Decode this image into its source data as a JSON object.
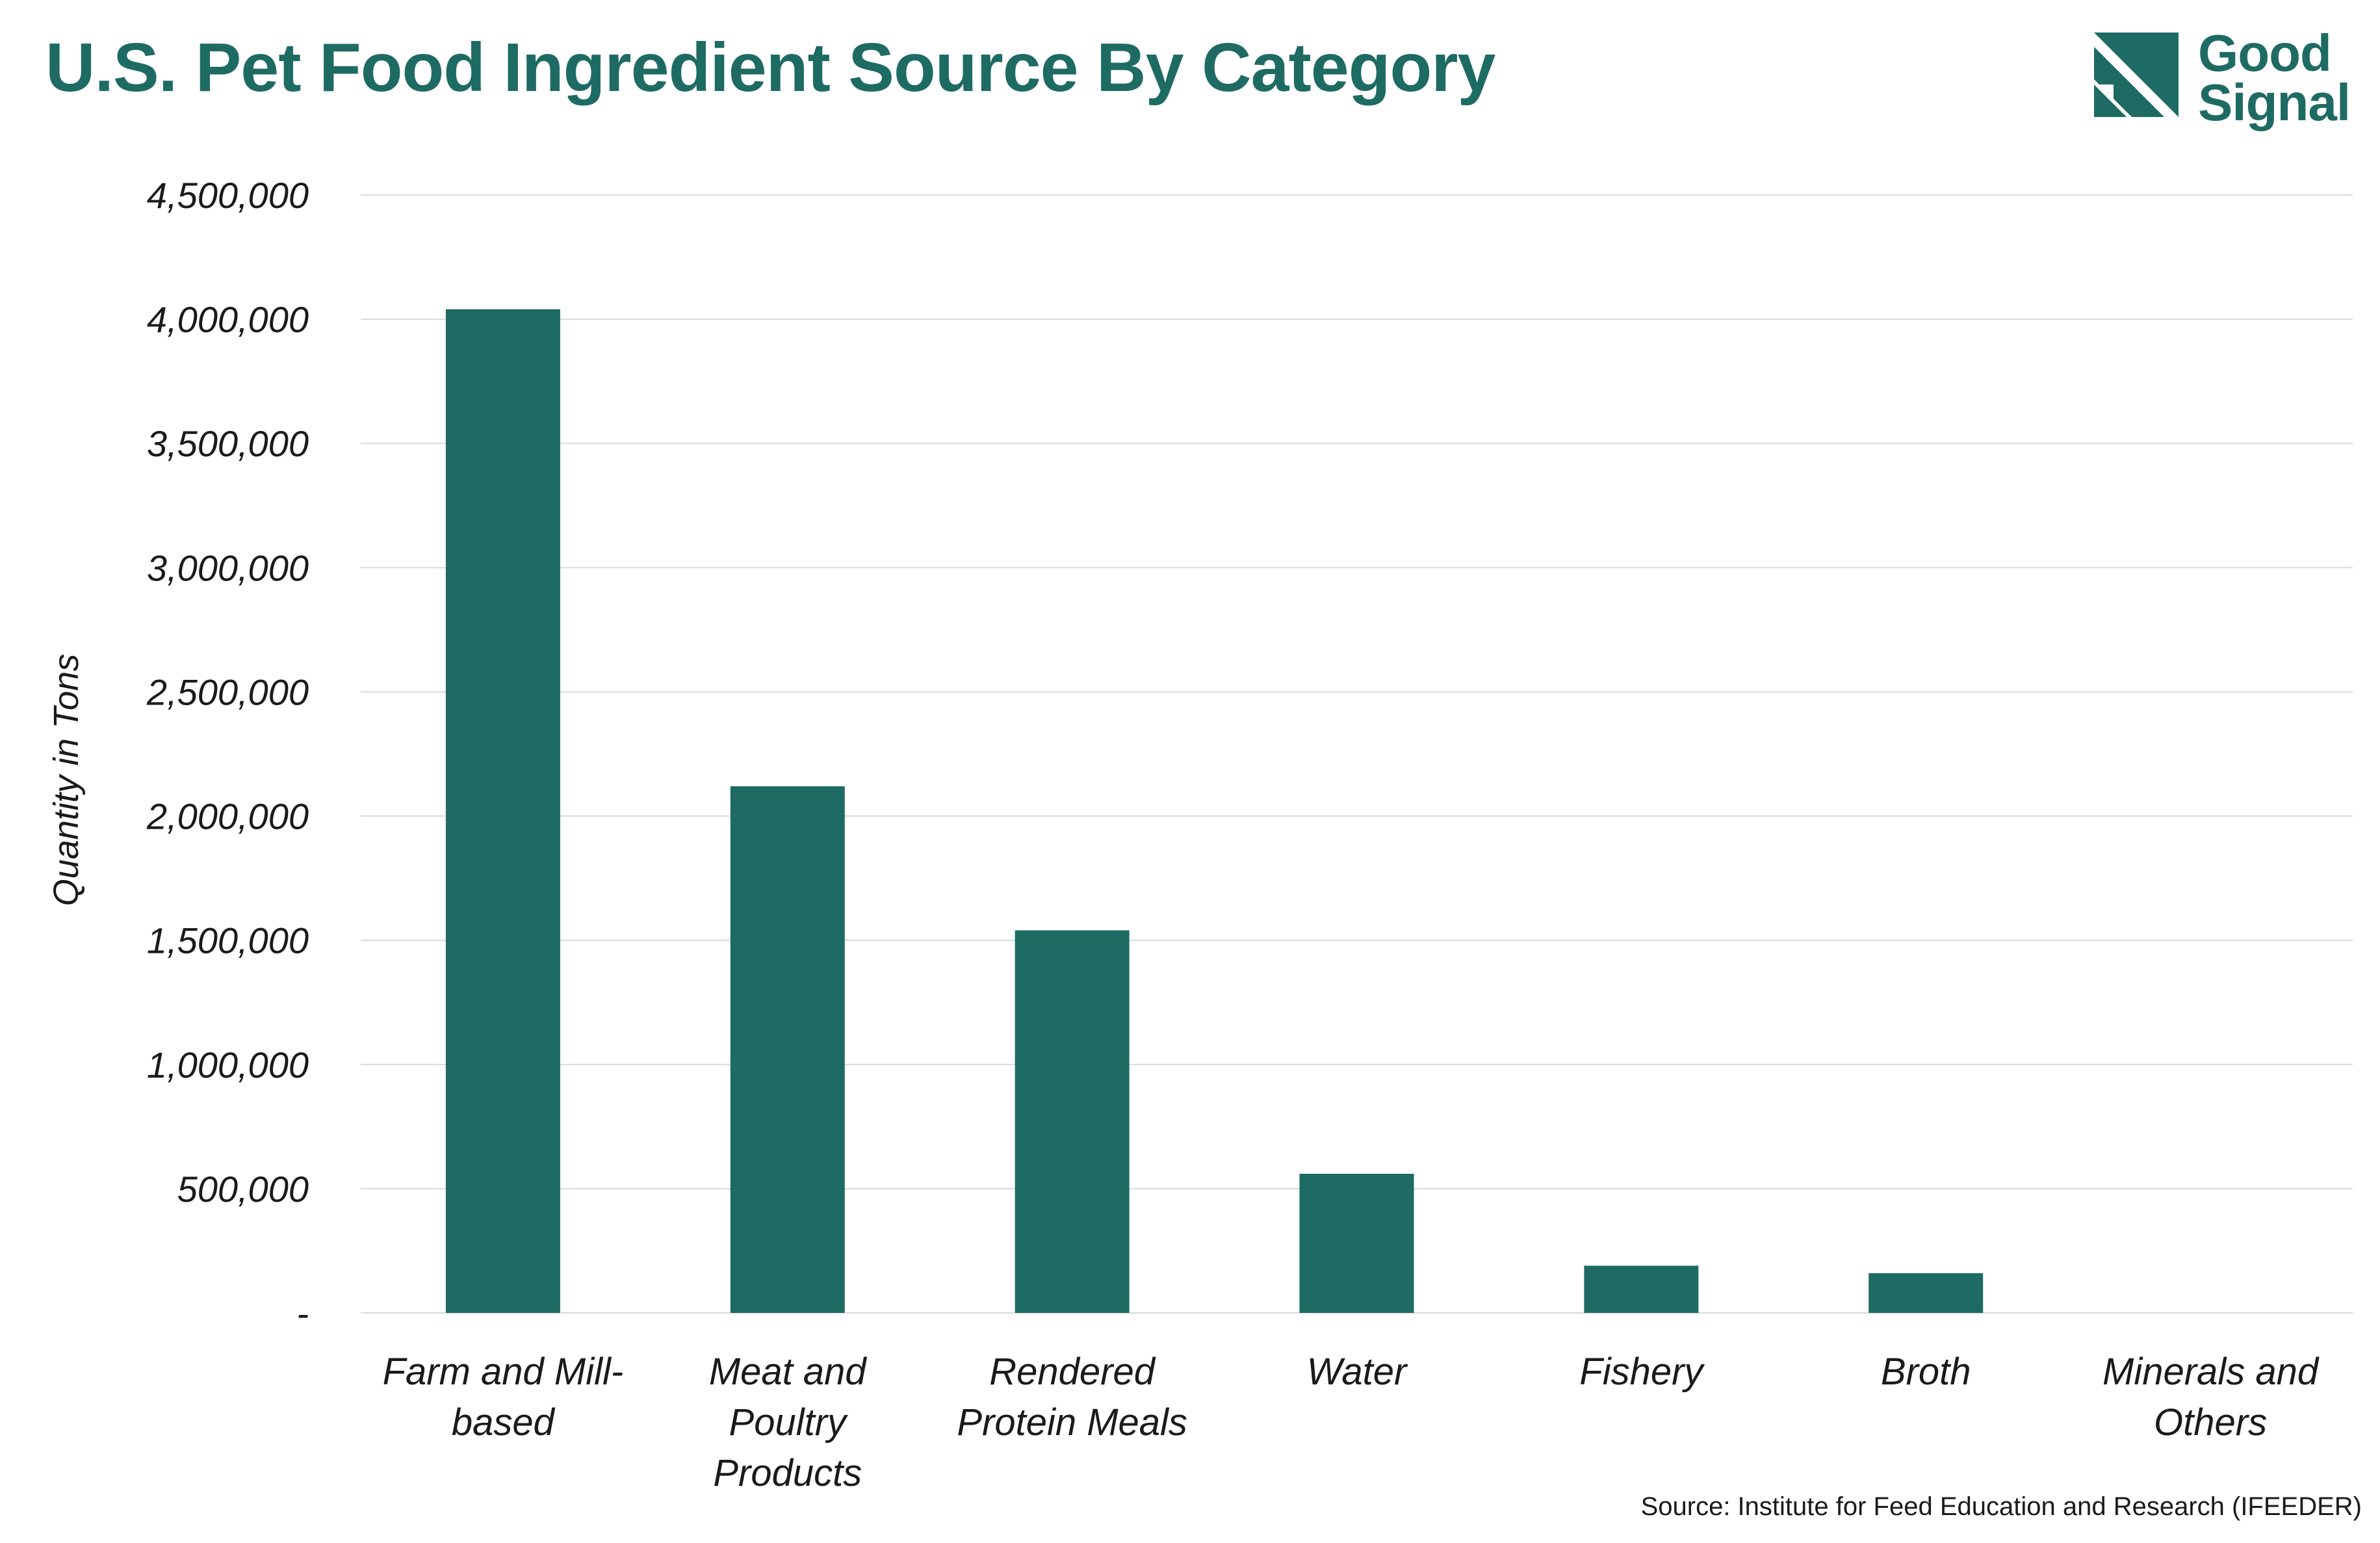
{
  "title": "U.S. Pet Food Ingredient Source By Category",
  "logo": {
    "line1": "Good",
    "line2": "Signal"
  },
  "source": "Source: Institute for Feed Education and Research (IFEEDER)",
  "colors": {
    "bar": "#1e6b63",
    "title": "#1e6b63",
    "grid": "#d9d9d9"
  },
  "chart_data": {
    "type": "bar",
    "title": "U.S. Pet Food Ingredient Source By Category",
    "xlabel": "",
    "ylabel": "Quantity in Tons",
    "categories": [
      [
        "Farm and Mill-",
        "based"
      ],
      [
        "Meat and",
        "Poultry",
        "Products"
      ],
      [
        "Rendered",
        "Protein Meals"
      ],
      [
        "Water"
      ],
      [
        "Fishery"
      ],
      [
        "Broth"
      ],
      [
        "Minerals and",
        "Others"
      ]
    ],
    "values": [
      4040000,
      2120000,
      1540000,
      560000,
      190000,
      160000,
      0
    ],
    "ylim": [
      0,
      4500000
    ],
    "yticks": [
      0,
      500000,
      1000000,
      1500000,
      2000000,
      2500000,
      3000000,
      3500000,
      4000000,
      4500000
    ],
    "ytick_labels": [
      "-",
      "500,000",
      "1,000,000",
      "1,500,000",
      "2,000,000",
      "2,500,000",
      "3,000,000",
      "3,500,000",
      "4,000,000",
      "4,500,000"
    ],
    "grid": true,
    "legend": "none"
  }
}
